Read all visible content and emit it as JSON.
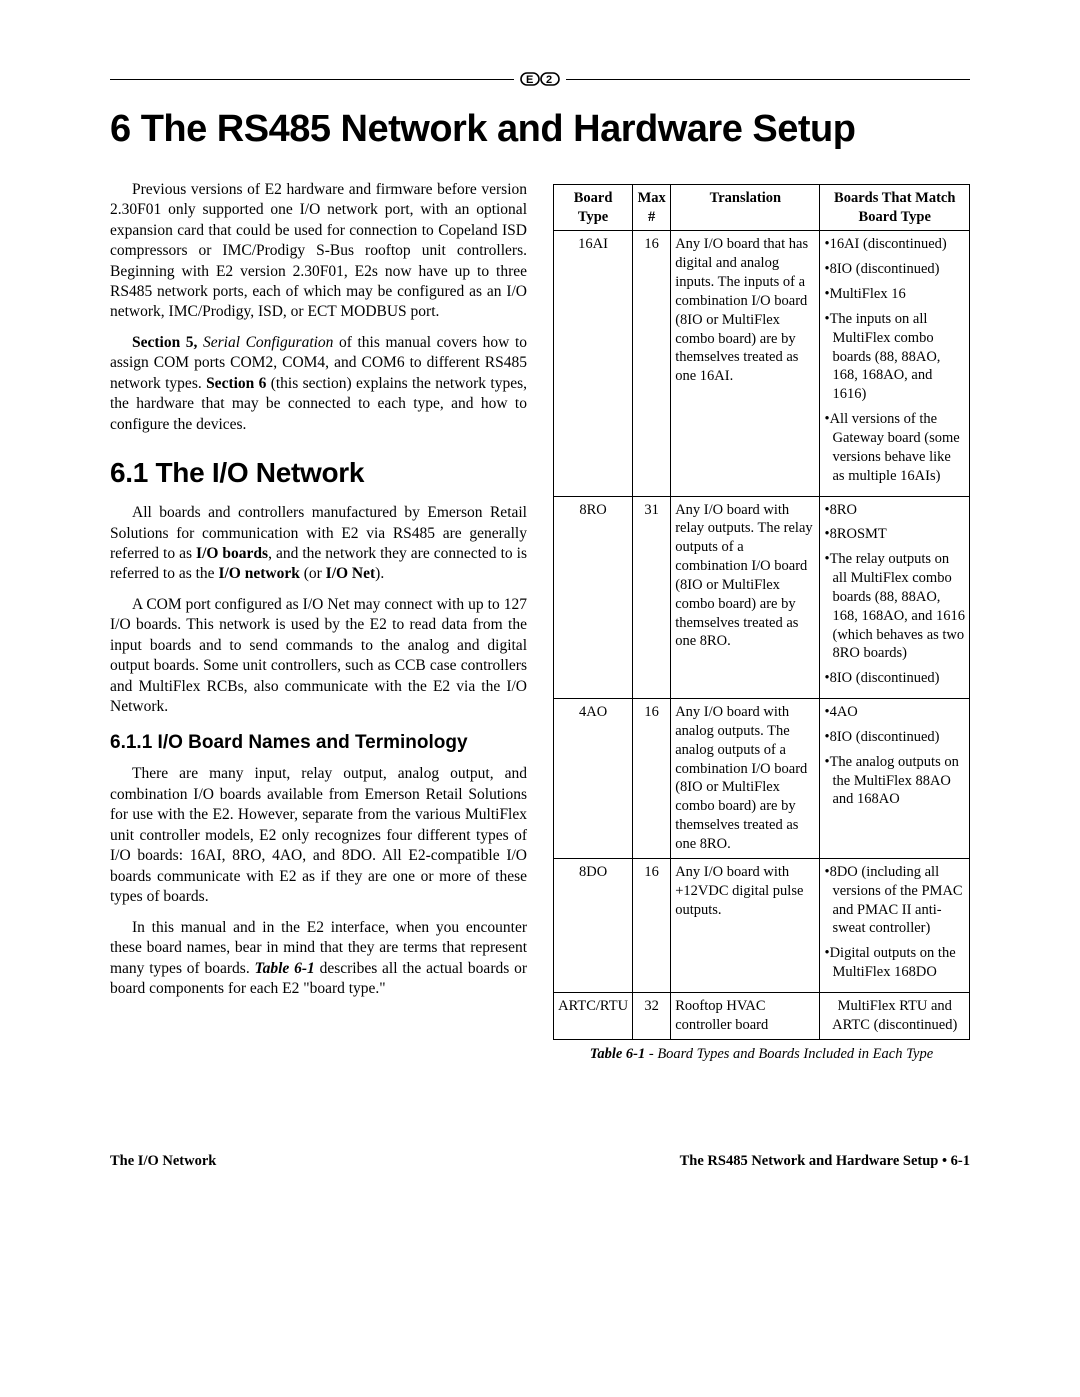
{
  "chapter_title": "6    The RS485 Network and Hardware Setup",
  "left": {
    "p1": "Previous versions of E2 hardware and firmware before version 2.30F01 only supported one I/O network port, with an optional expansion card that could be used for connection to Copeland ISD compressors or IMC/Prodigy S-Bus rooftop unit controllers. Beginning with E2 version 2.30F01, E2s now have up to three RS485 network ports, each of which may be configured as an I/O network, IMC/Prodigy, ISD, or ECT MODBUS port.",
    "p2a": "Section 5,",
    "p2b": " Serial Configuration",
    "p2c": " of this manual covers how to assign COM ports COM2, COM4, and COM6 to different RS485 network types. ",
    "p2d": "Section 6",
    "p2e": " (this section) explains the network types, the hardware that may be connected to each type, and how to configure the devices.",
    "h2": "6.1     The I/O Network",
    "p3a": "All boards and controllers manufactured by Emerson Retail Solutions for communication with E2 via RS485 are generally referred to as ",
    "p3b": "I/O boards",
    "p3c": ", and the network they are connected to is referred to as the ",
    "p3d": "I/O network",
    "p3e": " (or ",
    "p3f": "I/O Net",
    "p3g": ").",
    "p4": "A COM port configured as I/O Net may connect with up to 127 I/O boards. This network is used by the E2 to read data from the input boards and to send commands to the analog and digital output boards. Some unit controllers, such as CCB case controllers and MultiFlex RCBs, also communicate with the E2 via the I/O Network.",
    "h3": "6.1.1     I/O Board Names and Terminology",
    "p5": "There are many input, relay output, analog output, and combination I/O boards available from Emerson Retail Solutions for use with the E2. However, separate from the various MultiFlex unit controller models, E2 only recognizes four different types of I/O boards: 16AI, 8RO, 4AO, and 8DO. All E2-compatible I/O boards communicate with E2 as if they are one or more of these types of boards.",
    "p6a": "In this manual and in the E2 interface, when you encounter these board names, bear in mind that they are terms that represent many types of boards. ",
    "p6b": "Table 6-1",
    "p6c": " describes all the actual boards or board components for each E2 \"board type.\""
  },
  "table": {
    "headers": [
      "Board Type",
      "Max #",
      "Translation",
      "Boards That Match Board Type"
    ],
    "rows": [
      {
        "type": "16AI",
        "max": "16",
        "trans": "Any I/O board that has digital and analog inputs. The inputs of a combination I/O board (8IO or MultiFlex combo board) are by themselves treated as one 16AI.",
        "match": [
          "16AI (discontinued)",
          "8IO (discontinued)",
          "MultiFlex 16",
          "The inputs on all MultiFlex combo boards (88, 88AO, 168, 168AO, and 1616)",
          "All versions of the Gateway board (some versions behave like as multiple 16AIs)"
        ]
      },
      {
        "type": "8RO",
        "max": "31",
        "trans": "Any I/O board with relay outputs. The relay outputs of a combination I/O board (8IO or MultiFlex combo board) are by themselves treated as one 8RO.",
        "match": [
          "8RO",
          "8ROSMT",
          "The relay outputs on all MultiFlex combo boards (88, 88AO, 168, 168AO, and 1616 (which behaves as two 8RO boards)",
          "8IO (discontinued)"
        ]
      },
      {
        "type": "4AO",
        "max": "16",
        "trans": "Any I/O board with analog outputs. The analog outputs of a combination I/O board (8IO or MultiFlex combo board) are by themselves treated as one 8RO.",
        "match": [
          "4AO",
          "8IO (discontinued)",
          "The analog outputs on the MultiFlex 88AO and 168AO"
        ]
      },
      {
        "type": "8DO",
        "max": "16",
        "trans": "Any I/O board with +12VDC digital pulse outputs.",
        "match": [
          "8DO (including all versions of the PMAC and PMAC II anti-sweat controller)",
          "Digital outputs on the MultiFlex 168DO"
        ]
      },
      {
        "type": "ARTC/RTU",
        "max": "32",
        "trans": "Rooftop HVAC controller board",
        "match_plain": "MultiFlex RTU and ARTC (discontinued)"
      }
    ],
    "caption_b": "Table 6-1",
    "caption_i": " - Board Types and Boards Included in Each Type"
  },
  "footer": {
    "left": "The I/O Network",
    "right": "The RS485 Network and Hardware Setup • 6-1"
  }
}
